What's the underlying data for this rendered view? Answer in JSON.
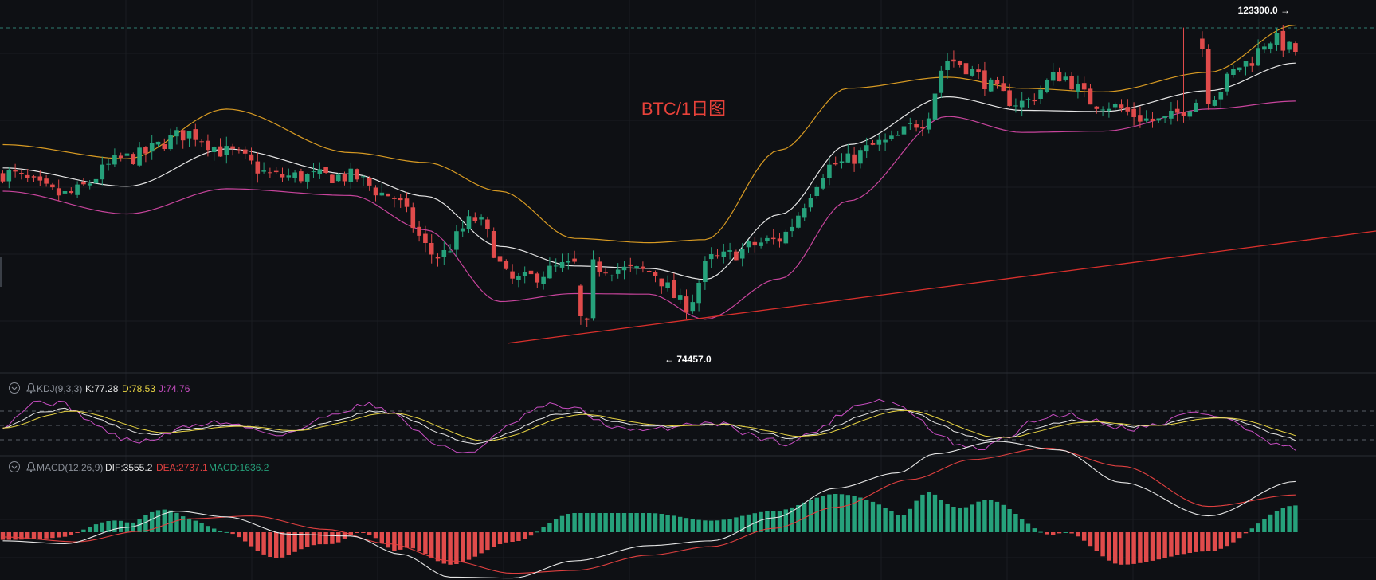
{
  "chart_data": [
    {
      "type": "candlestick",
      "title": "BTC/1日图",
      "ylim": [
        68000,
        126500
      ],
      "annotations": {
        "high_label": "123300.0 →",
        "high_value": 123300.0,
        "low_label": "← 74457.0",
        "low_value": 74457.0
      },
      "overlays": [
        "Bollinger upper (orange)",
        "Bollinger middle (white)",
        "Bollinger lower (magenta)",
        "trendline (red)"
      ],
      "colors": {
        "up": "#26a17b",
        "down": "#e04b4b",
        "upper": "#d79a23",
        "middle": "#e6e6e6",
        "lower": "#c7449c",
        "trend": "#d9302c",
        "title": "#e8423a"
      },
      "grid": true
    },
    {
      "type": "line",
      "indicator": "KDJ(9,3,3)",
      "legend": {
        "name": "KDJ(9,3,3)",
        "k_label": "K:77.28",
        "d_label": "D:78.53",
        "j_label": "J:74.76"
      },
      "ylim": [
        -10,
        110
      ],
      "colors": {
        "k": "#e6e6e6",
        "d": "#e8d443",
        "j": "#c74dc1"
      }
    },
    {
      "type": "bar",
      "indicator": "MACD(12,26,9)",
      "legend": {
        "name": "MACD(12,26,9)",
        "dif_label": "DIF:3555.2",
        "dea_label": "DEA:2737.1",
        "macd_label": "MACD:1636.2"
      },
      "colors": {
        "dif": "#e6e6e6",
        "dea": "#e04040",
        "pos": "#26a17b",
        "neg": "#e04b4b"
      }
    }
  ]
}
